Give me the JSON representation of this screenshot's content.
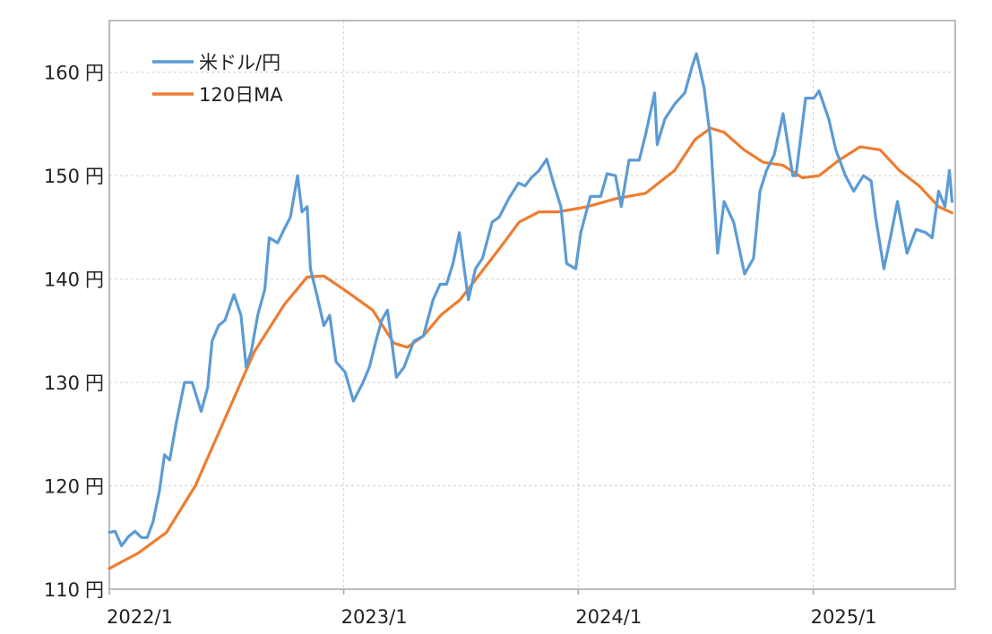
{
  "chart_data": {
    "type": "line",
    "title": "",
    "xlabel": "",
    "ylabel": "",
    "ylim": [
      110,
      165
    ],
    "xlim": [
      "2022-01-01",
      "2025-08-10"
    ],
    "grid": true,
    "legend_position": "top-left",
    "y_ticks": [
      {
        "value": 110,
        "label": "110円"
      },
      {
        "value": 120,
        "label": "120円"
      },
      {
        "value": 130,
        "label": "130円"
      },
      {
        "value": 140,
        "label": "140円"
      },
      {
        "value": 150,
        "label": "150円"
      },
      {
        "value": 160,
        "label": "160円"
      }
    ],
    "x_ticks": [
      {
        "value": "2022-01-01",
        "label": "2022/1"
      },
      {
        "value": "2023-01-01",
        "label": "2023/1"
      },
      {
        "value": "2024-01-01",
        "label": "2024/1"
      },
      {
        "value": "2025-01-01",
        "label": "2025/1"
      }
    ],
    "series": [
      {
        "name": "米ドル/円",
        "color": "#5b9bd5",
        "points": [
          [
            "2022-01-01",
            115.5
          ],
          [
            "2022-01-10",
            115.6
          ],
          [
            "2022-01-20",
            114.2
          ],
          [
            "2022-01-31",
            115.1
          ],
          [
            "2022-02-10",
            115.6
          ],
          [
            "2022-02-20",
            115.0
          ],
          [
            "2022-03-01",
            115.0
          ],
          [
            "2022-03-10",
            116.5
          ],
          [
            "2022-03-20",
            119.5
          ],
          [
            "2022-03-28",
            123.0
          ],
          [
            "2022-04-05",
            122.5
          ],
          [
            "2022-04-15",
            126.0
          ],
          [
            "2022-04-28",
            130.0
          ],
          [
            "2022-05-10",
            130.0
          ],
          [
            "2022-05-24",
            127.2
          ],
          [
            "2022-06-03",
            129.5
          ],
          [
            "2022-06-10",
            134.0
          ],
          [
            "2022-06-20",
            135.5
          ],
          [
            "2022-06-30",
            136.0
          ],
          [
            "2022-07-14",
            138.5
          ],
          [
            "2022-07-25",
            136.5
          ],
          [
            "2022-08-02",
            131.5
          ],
          [
            "2022-08-10",
            133.0
          ],
          [
            "2022-08-20",
            136.5
          ],
          [
            "2022-08-31",
            139.0
          ],
          [
            "2022-09-07",
            144.0
          ],
          [
            "2022-09-20",
            143.5
          ],
          [
            "2022-09-30",
            144.8
          ],
          [
            "2022-10-10",
            146.0
          ],
          [
            "2022-10-21",
            150.0
          ],
          [
            "2022-10-28",
            146.5
          ],
          [
            "2022-11-05",
            147.0
          ],
          [
            "2022-11-10",
            141.0
          ],
          [
            "2022-11-20",
            138.5
          ],
          [
            "2022-12-01",
            135.5
          ],
          [
            "2022-12-10",
            136.5
          ],
          [
            "2022-12-20",
            132.0
          ],
          [
            "2023-01-03",
            131.0
          ],
          [
            "2023-01-16",
            128.2
          ],
          [
            "2023-01-31",
            130.0
          ],
          [
            "2023-02-10",
            131.5
          ],
          [
            "2023-02-20",
            134.0
          ],
          [
            "2023-03-01",
            136.0
          ],
          [
            "2023-03-10",
            137.0
          ],
          [
            "2023-03-24",
            130.5
          ],
          [
            "2023-04-05",
            131.5
          ],
          [
            "2023-04-20",
            134.0
          ],
          [
            "2023-05-05",
            134.5
          ],
          [
            "2023-05-20",
            138.0
          ],
          [
            "2023-05-31",
            139.5
          ],
          [
            "2023-06-10",
            139.5
          ],
          [
            "2023-06-20",
            141.5
          ],
          [
            "2023-06-30",
            144.5
          ],
          [
            "2023-07-14",
            138.0
          ],
          [
            "2023-07-25",
            141.0
          ],
          [
            "2023-08-05",
            142.0
          ],
          [
            "2023-08-20",
            145.5
          ],
          [
            "2023-08-31",
            146.0
          ],
          [
            "2023-09-15",
            147.8
          ],
          [
            "2023-09-30",
            149.3
          ],
          [
            "2023-10-10",
            149.0
          ],
          [
            "2023-10-20",
            149.8
          ],
          [
            "2023-11-01",
            150.5
          ],
          [
            "2023-11-13",
            151.6
          ],
          [
            "2023-11-25",
            149.0
          ],
          [
            "2023-12-05",
            147.0
          ],
          [
            "2023-12-14",
            141.5
          ],
          [
            "2023-12-28",
            141.0
          ],
          [
            "2024-01-05",
            144.5
          ],
          [
            "2024-01-20",
            148.0
          ],
          [
            "2024-02-05",
            148.0
          ],
          [
            "2024-02-15",
            150.2
          ],
          [
            "2024-02-28",
            150.0
          ],
          [
            "2024-03-08",
            147.0
          ],
          [
            "2024-03-20",
            151.5
          ],
          [
            "2024-04-05",
            151.5
          ],
          [
            "2024-04-15",
            154.0
          ],
          [
            "2024-04-29",
            158.0
          ],
          [
            "2024-05-03",
            153.0
          ],
          [
            "2024-05-15",
            155.5
          ],
          [
            "2024-05-31",
            157.0
          ],
          [
            "2024-06-15",
            158.0
          ],
          [
            "2024-06-26",
            160.5
          ],
          [
            "2024-07-03",
            161.8
          ],
          [
            "2024-07-15",
            158.5
          ],
          [
            "2024-07-25",
            153.5
          ],
          [
            "2024-08-05",
            142.5
          ],
          [
            "2024-08-15",
            147.5
          ],
          [
            "2024-08-30",
            145.5
          ],
          [
            "2024-09-16",
            140.5
          ],
          [
            "2024-09-30",
            142.0
          ],
          [
            "2024-10-10",
            148.5
          ],
          [
            "2024-10-20",
            150.5
          ],
          [
            "2024-11-01",
            152.0
          ],
          [
            "2024-11-15",
            156.0
          ],
          [
            "2024-11-30",
            150.0
          ],
          [
            "2024-12-05",
            150.0
          ],
          [
            "2024-12-20",
            157.5
          ],
          [
            "2025-01-02",
            157.5
          ],
          [
            "2025-01-10",
            158.2
          ],
          [
            "2025-01-25",
            155.5
          ],
          [
            "2025-02-05",
            152.5
          ],
          [
            "2025-02-20",
            150.0
          ],
          [
            "2025-03-05",
            148.5
          ],
          [
            "2025-03-20",
            150.0
          ],
          [
            "2025-04-01",
            149.5
          ],
          [
            "2025-04-08",
            146.0
          ],
          [
            "2025-04-21",
            141.0
          ],
          [
            "2025-05-01",
            144.0
          ],
          [
            "2025-05-12",
            147.5
          ],
          [
            "2025-05-27",
            142.5
          ],
          [
            "2025-06-10",
            144.8
          ],
          [
            "2025-06-25",
            144.5
          ],
          [
            "2025-07-05",
            144.0
          ],
          [
            "2025-07-15",
            148.5
          ],
          [
            "2025-07-25",
            147.0
          ],
          [
            "2025-08-01",
            150.5
          ],
          [
            "2025-08-05",
            147.5
          ]
        ]
      },
      {
        "name": "120日MA",
        "color": "#ed7d31",
        "points": [
          [
            "2022-01-01",
            112.0
          ],
          [
            "2022-02-15",
            113.5
          ],
          [
            "2022-03-31",
            115.5
          ],
          [
            "2022-05-15",
            120.0
          ],
          [
            "2022-06-30",
            126.5
          ],
          [
            "2022-08-15",
            133.0
          ],
          [
            "2022-09-30",
            137.5
          ],
          [
            "2022-11-05",
            140.2
          ],
          [
            "2022-12-01",
            140.3
          ],
          [
            "2023-01-01",
            139.0
          ],
          [
            "2023-02-15",
            137.0
          ],
          [
            "2023-03-20",
            133.8
          ],
          [
            "2023-04-10",
            133.4
          ],
          [
            "2023-05-05",
            134.5
          ],
          [
            "2023-06-01",
            136.5
          ],
          [
            "2023-07-01",
            138.0
          ],
          [
            "2023-08-01",
            140.5
          ],
          [
            "2023-09-01",
            143.0
          ],
          [
            "2023-10-01",
            145.5
          ],
          [
            "2023-11-01",
            146.5
          ],
          [
            "2023-12-01",
            146.5
          ],
          [
            "2024-01-15",
            147.0
          ],
          [
            "2024-03-01",
            147.8
          ],
          [
            "2024-04-15",
            148.3
          ],
          [
            "2024-05-30",
            150.5
          ],
          [
            "2024-07-01",
            153.5
          ],
          [
            "2024-07-25",
            154.6
          ],
          [
            "2024-08-15",
            154.2
          ],
          [
            "2024-09-15",
            152.5
          ],
          [
            "2024-10-15",
            151.3
          ],
          [
            "2024-11-15",
            151.0
          ],
          [
            "2024-12-15",
            149.8
          ],
          [
            "2025-01-10",
            150.0
          ],
          [
            "2025-02-10",
            151.5
          ],
          [
            "2025-03-15",
            152.8
          ],
          [
            "2025-04-15",
            152.5
          ],
          [
            "2025-05-15",
            150.5
          ],
          [
            "2025-06-15",
            149.0
          ],
          [
            "2025-07-15",
            147.0
          ],
          [
            "2025-08-05",
            146.4
          ]
        ]
      }
    ]
  }
}
